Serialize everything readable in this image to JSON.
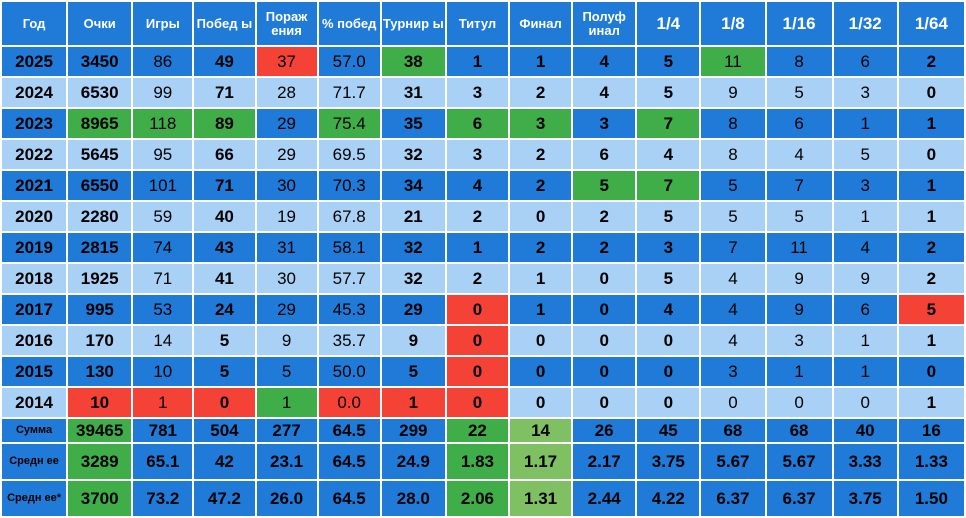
{
  "table": {
    "headers": [
      "Год",
      "Очки",
      "Игры",
      "Побед ы",
      "Пораж ения",
      "% побед",
      "Турнир ы",
      "Титул",
      "Финал",
      "Полуф инал",
      "1/4",
      "1/8",
      "1/16",
      "1/32",
      "1/64"
    ],
    "rows": [
      {
        "label": "2025",
        "cells": [
          "3450",
          "86",
          "49",
          "37",
          "57.0",
          "38",
          "1",
          "1",
          "4",
          "5",
          "11",
          "8",
          "6",
          "2"
        ],
        "highlight": {
          "3": "red",
          "5": "green",
          "10": "green"
        }
      },
      {
        "label": "2024",
        "cells": [
          "6530",
          "99",
          "71",
          "28",
          "71.7",
          "31",
          "3",
          "2",
          "4",
          "5",
          "9",
          "5",
          "3",
          "0"
        ],
        "highlight": {}
      },
      {
        "label": "2023",
        "cells": [
          "8965",
          "118",
          "89",
          "29",
          "75.4",
          "35",
          "6",
          "3",
          "3",
          "7",
          "8",
          "6",
          "1",
          "1"
        ],
        "highlight": {
          "0": "green",
          "1": "green",
          "2": "green",
          "4": "green",
          "6": "green",
          "7": "green",
          "9": "green"
        }
      },
      {
        "label": "2022",
        "cells": [
          "5645",
          "95",
          "66",
          "29",
          "69.5",
          "32",
          "3",
          "2",
          "6",
          "4",
          "8",
          "4",
          "5",
          "0"
        ],
        "highlight": {}
      },
      {
        "label": "2021",
        "cells": [
          "6550",
          "101",
          "71",
          "30",
          "70.3",
          "34",
          "4",
          "2",
          "5",
          "7",
          "5",
          "7",
          "3",
          "1"
        ],
        "highlight": {
          "8": "green",
          "9": "green"
        }
      },
      {
        "label": "2020",
        "cells": [
          "2280",
          "59",
          "40",
          "19",
          "67.8",
          "21",
          "2",
          "0",
          "2",
          "5",
          "5",
          "5",
          "1",
          "1"
        ],
        "highlight": {}
      },
      {
        "label": "2019",
        "cells": [
          "2815",
          "74",
          "43",
          "31",
          "58.1",
          "32",
          "1",
          "2",
          "2",
          "3",
          "7",
          "11",
          "4",
          "2"
        ],
        "highlight": {}
      },
      {
        "label": "2018",
        "cells": [
          "1925",
          "71",
          "41",
          "30",
          "57.7",
          "32",
          "2",
          "1",
          "0",
          "5",
          "4",
          "9",
          "9",
          "2"
        ],
        "highlight": {}
      },
      {
        "label": "2017",
        "cells": [
          "995",
          "53",
          "24",
          "29",
          "45.3",
          "29",
          "0",
          "1",
          "0",
          "4",
          "4",
          "9",
          "6",
          "5"
        ],
        "highlight": {
          "6": "red",
          "13": "red"
        }
      },
      {
        "label": "2016",
        "cells": [
          "170",
          "14",
          "5",
          "9",
          "35.7",
          "9",
          "0",
          "0",
          "0",
          "0",
          "4",
          "3",
          "1",
          "1"
        ],
        "highlight": {
          "6": "red"
        }
      },
      {
        "label": "2015",
        "cells": [
          "130",
          "10",
          "5",
          "5",
          "50.0",
          "5",
          "0",
          "0",
          "0",
          "0",
          "3",
          "1",
          "1",
          "0"
        ],
        "highlight": {
          "6": "red"
        }
      },
      {
        "label": "2014",
        "cells": [
          "10",
          "1",
          "0",
          "1",
          "0.0",
          "1",
          "0",
          "0",
          "0",
          "0",
          "0",
          "0",
          "0",
          "1"
        ],
        "highlight": {
          "0": "red",
          "1": "red",
          "2": "red",
          "3": "green",
          "4": "red",
          "5": "red",
          "6": "red"
        }
      },
      {
        "label": "Сумма",
        "cells": [
          "39465",
          "781",
          "504",
          "277",
          "64.5",
          "299",
          "22",
          "14",
          "26",
          "45",
          "68",
          "68",
          "40",
          "16"
        ],
        "highlight": {
          "0": "green",
          "6": "green",
          "7": "lightgreen"
        }
      },
      {
        "label": "Средн ее",
        "cells": [
          "3289",
          "65.1",
          "42",
          "23.1",
          "64.5",
          "24.9",
          "1.83",
          "1.17",
          "2.17",
          "3.75",
          "5.67",
          "5.67",
          "3.33",
          "1.33"
        ],
        "highlight": {
          "0": "green",
          "6": "green",
          "7": "lightgreen"
        }
      },
      {
        "label": "Средн ее*",
        "cells": [
          "3700",
          "73.2",
          "47.2",
          "26.0",
          "64.5",
          "28.0",
          "2.06",
          "1.31",
          "2.44",
          "4.22",
          "6.37",
          "6.37",
          "3.75",
          "1.50"
        ],
        "highlight": {
          "0": "green",
          "6": "green",
          "7": "lightgreen"
        }
      }
    ]
  },
  "colors": {
    "header_bg": "#1f7ad8",
    "row_dark": "#1f7ad8",
    "row_light": "#a9d1f5",
    "green": "#3fae49",
    "light_green": "#7fc063",
    "red": "#f44336"
  }
}
